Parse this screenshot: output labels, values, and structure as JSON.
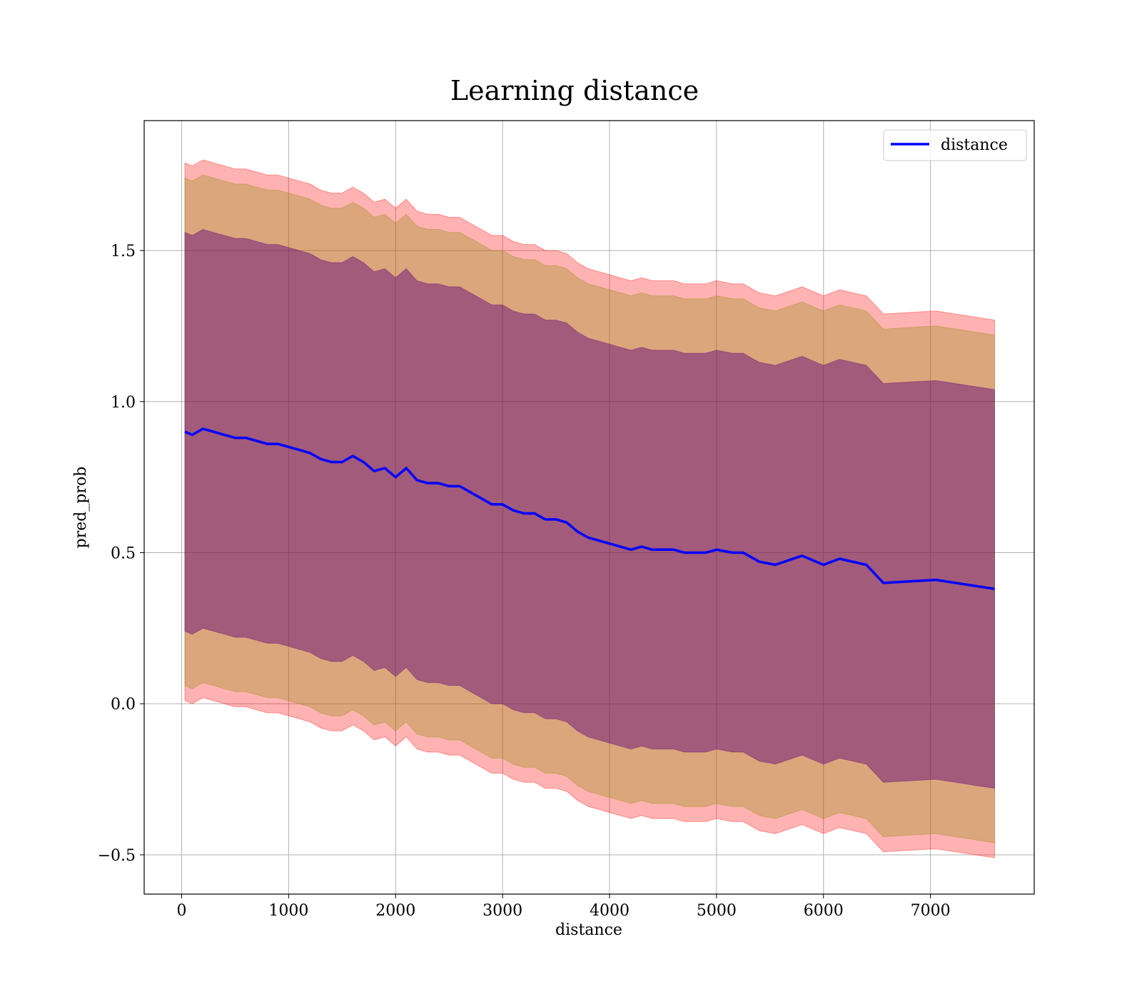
{
  "chart_data": {
    "type": "line",
    "title": "Learning distance",
    "xlabel": "distance",
    "ylabel": "pred_prob",
    "xlim": [
      -350,
      7970
    ],
    "ylim": [
      -0.63,
      1.93
    ],
    "x_ticks": [
      0,
      1000,
      2000,
      3000,
      4000,
      5000,
      6000,
      7000
    ],
    "x_tick_labels": [
      "0",
      "1000",
      "2000",
      "3000",
      "4000",
      "5000",
      "6000",
      "7000"
    ],
    "y_ticks": [
      -0.5,
      0.0,
      0.5,
      1.0,
      1.5
    ],
    "y_tick_labels": [
      "−0.5",
      "0.0",
      "0.5",
      "1.0",
      "1.5"
    ],
    "grid": true,
    "legend": {
      "position": "upper right",
      "entries": [
        "distance"
      ]
    },
    "colors": {
      "line": "#0000ff",
      "band_outer": "#ff0000",
      "band_middle": "#8b8b00",
      "band_inner": "#5c007a",
      "grid": "#b0b0b0"
    },
    "series": [
      {
        "name": "distance",
        "x": [
          30,
          100,
          200,
          300,
          400,
          500,
          600,
          700,
          800,
          900,
          1000,
          1100,
          1200,
          1300,
          1400,
          1500,
          1600,
          1700,
          1800,
          1900,
          2000,
          2100,
          2200,
          2300,
          2400,
          2500,
          2600,
          2700,
          2800,
          2900,
          3000,
          3100,
          3200,
          3300,
          3400,
          3500,
          3600,
          3700,
          3800,
          3900,
          4000,
          4100,
          4200,
          4300,
          4400,
          4500,
          4600,
          4700,
          4800,
          4900,
          5000,
          5150,
          5250,
          5400,
          5550,
          5800,
          6000,
          6150,
          6400,
          6560,
          7050,
          7600
        ],
        "values": [
          0.9,
          0.89,
          0.91,
          0.9,
          0.89,
          0.88,
          0.88,
          0.87,
          0.86,
          0.86,
          0.85,
          0.84,
          0.83,
          0.81,
          0.8,
          0.8,
          0.82,
          0.8,
          0.77,
          0.78,
          0.75,
          0.78,
          0.74,
          0.73,
          0.73,
          0.72,
          0.72,
          0.7,
          0.68,
          0.66,
          0.66,
          0.64,
          0.63,
          0.63,
          0.61,
          0.61,
          0.6,
          0.57,
          0.55,
          0.54,
          0.53,
          0.52,
          0.51,
          0.52,
          0.51,
          0.51,
          0.51,
          0.5,
          0.5,
          0.5,
          0.51,
          0.5,
          0.5,
          0.47,
          0.46,
          0.49,
          0.46,
          0.48,
          0.46,
          0.4,
          0.41,
          0.38
        ],
        "band_1sd": [
          0.66,
          0.66,
          0.66,
          0.66,
          0.66,
          0.66,
          0.66,
          0.66,
          0.66,
          0.66,
          0.66,
          0.66,
          0.66,
          0.66,
          0.66,
          0.66,
          0.66,
          0.66,
          0.66,
          0.66,
          0.66,
          0.66,
          0.66,
          0.66,
          0.66,
          0.66,
          0.66,
          0.66,
          0.66,
          0.66,
          0.66,
          0.66,
          0.66,
          0.66,
          0.66,
          0.66,
          0.66,
          0.66,
          0.66,
          0.66,
          0.66,
          0.66,
          0.66,
          0.66,
          0.66,
          0.66,
          0.66,
          0.66,
          0.66,
          0.66,
          0.66,
          0.66,
          0.66,
          0.66,
          0.66,
          0.66,
          0.66,
          0.66,
          0.66,
          0.66,
          0.66,
          0.66
        ],
        "band_2sd": [
          0.84,
          0.84,
          0.84,
          0.84,
          0.84,
          0.84,
          0.84,
          0.84,
          0.84,
          0.84,
          0.84,
          0.84,
          0.84,
          0.84,
          0.84,
          0.84,
          0.84,
          0.84,
          0.84,
          0.84,
          0.84,
          0.84,
          0.84,
          0.84,
          0.84,
          0.84,
          0.84,
          0.84,
          0.84,
          0.84,
          0.84,
          0.84,
          0.84,
          0.84,
          0.84,
          0.84,
          0.84,
          0.84,
          0.84,
          0.84,
          0.84,
          0.84,
          0.84,
          0.84,
          0.84,
          0.84,
          0.84,
          0.84,
          0.84,
          0.84,
          0.84,
          0.84,
          0.84,
          0.84,
          0.84,
          0.84,
          0.84,
          0.84,
          0.84,
          0.84,
          0.84,
          0.84
        ],
        "band_3sd": [
          0.89,
          0.89,
          0.89,
          0.89,
          0.89,
          0.89,
          0.89,
          0.89,
          0.89,
          0.89,
          0.89,
          0.89,
          0.89,
          0.89,
          0.89,
          0.89,
          0.89,
          0.89,
          0.89,
          0.89,
          0.89,
          0.89,
          0.89,
          0.89,
          0.89,
          0.89,
          0.89,
          0.89,
          0.89,
          0.89,
          0.89,
          0.89,
          0.89,
          0.89,
          0.89,
          0.89,
          0.89,
          0.89,
          0.89,
          0.89,
          0.89,
          0.89,
          0.89,
          0.89,
          0.89,
          0.89,
          0.89,
          0.89,
          0.89,
          0.89,
          0.89,
          0.89,
          0.89,
          0.89,
          0.89,
          0.89,
          0.89,
          0.89,
          0.89,
          0.89,
          0.89,
          0.89
        ]
      }
    ]
  }
}
